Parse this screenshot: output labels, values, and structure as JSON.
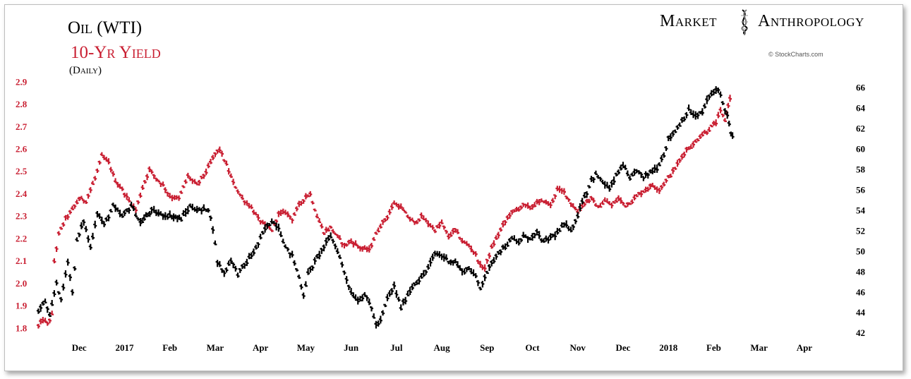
{
  "brand": {
    "left": "Market",
    "right": "Anthropology",
    "credit": "© StockCharts.com"
  },
  "chart_data": {
    "type": "line",
    "title": "Oil (WTI)",
    "subtitle": "10-Yr Yield",
    "period": "(Daily)",
    "grid": false,
    "x_labels": [
      "Dec",
      "2017",
      "Feb",
      "Mar",
      "Apr",
      "May",
      "Jun",
      "Jul",
      "Aug",
      "Sep",
      "Oct",
      "Nov",
      "Dec",
      "2018",
      "Feb",
      "Mar",
      "Apr"
    ],
    "x_label_times": [
      1.0,
      2.0,
      3.0,
      4.0,
      5.0,
      6.0,
      7.0,
      8.0,
      9.0,
      10.0,
      11.0,
      12.0,
      13.0,
      14.0,
      15.0,
      16.0,
      17.0
    ],
    "xlim": [
      0.0,
      17.5
    ],
    "left_axis": {
      "label": "",
      "ticks": [
        1.8,
        1.9,
        2.0,
        2.1,
        2.2,
        2.3,
        2.4,
        2.5,
        2.6,
        2.7,
        2.8,
        2.9
      ],
      "ylim": [
        1.76,
        2.92
      ],
      "color": "#c91f32"
    },
    "right_axis": {
      "label": "",
      "ticks": [
        42,
        44,
        46,
        48,
        50,
        52,
        54,
        56,
        58,
        60,
        62,
        64,
        66
      ],
      "ylim": [
        41.6,
        67.0
      ],
      "color": "#000000"
    },
    "series": [
      {
        "name": "Oil (WTI)",
        "axis": "right",
        "color": "#000000",
        "points": [
          [
            0.1,
            44.2
          ],
          [
            0.25,
            45.1
          ],
          [
            0.35,
            43.6
          ],
          [
            0.5,
            47.0
          ],
          [
            0.6,
            45.2
          ],
          [
            0.75,
            49.1
          ],
          [
            0.85,
            46.0
          ],
          [
            0.95,
            51.0
          ],
          [
            1.1,
            53.0
          ],
          [
            1.25,
            50.4
          ],
          [
            1.4,
            53.8
          ],
          [
            1.55,
            52.6
          ],
          [
            1.75,
            54.4
          ],
          [
            1.95,
            53.4
          ],
          [
            2.15,
            54.5
          ],
          [
            2.35,
            52.8
          ],
          [
            2.6,
            54.0
          ],
          [
            2.8,
            53.6
          ],
          [
            3.0,
            53.5
          ],
          [
            3.25,
            53.2
          ],
          [
            3.45,
            54.4
          ],
          [
            3.65,
            54.0
          ],
          [
            3.85,
            54.2
          ],
          [
            3.95,
            52.3
          ],
          [
            4.05,
            49.0
          ],
          [
            4.2,
            47.9
          ],
          [
            4.35,
            49.2
          ],
          [
            4.5,
            47.8
          ],
          [
            4.7,
            49.0
          ],
          [
            4.9,
            50.3
          ],
          [
            5.1,
            52.2
          ],
          [
            5.25,
            53.0
          ],
          [
            5.4,
            52.4
          ],
          [
            5.55,
            50.4
          ],
          [
            5.7,
            49.6
          ],
          [
            5.85,
            47.5
          ],
          [
            5.95,
            45.8
          ],
          [
            6.05,
            47.8
          ],
          [
            6.2,
            49.0
          ],
          [
            6.4,
            50.5
          ],
          [
            6.55,
            51.5
          ],
          [
            6.7,
            50.1
          ],
          [
            6.85,
            48.0
          ],
          [
            7.0,
            46.0
          ],
          [
            7.15,
            45.2
          ],
          [
            7.3,
            45.8
          ],
          [
            7.45,
            44.5
          ],
          [
            7.55,
            42.8
          ],
          [
            7.65,
            43.2
          ],
          [
            7.8,
            45.4
          ],
          [
            7.95,
            46.6
          ],
          [
            8.1,
            44.5
          ],
          [
            8.25,
            45.8
          ],
          [
            8.4,
            46.9
          ],
          [
            8.55,
            47.4
          ],
          [
            8.7,
            48.4
          ],
          [
            8.85,
            49.8
          ],
          [
            9.0,
            49.6
          ],
          [
            9.15,
            49.1
          ],
          [
            9.3,
            49.0
          ],
          [
            9.45,
            48.0
          ],
          [
            9.6,
            48.4
          ],
          [
            9.75,
            47.5
          ],
          [
            9.85,
            46.4
          ],
          [
            9.95,
            47.6
          ],
          [
            10.1,
            48.8
          ],
          [
            10.25,
            50.0
          ],
          [
            10.4,
            50.5
          ],
          [
            10.55,
            51.2
          ],
          [
            10.7,
            50.9
          ],
          [
            10.85,
            51.6
          ],
          [
            10.95,
            51.2
          ],
          [
            11.1,
            51.8
          ],
          [
            11.25,
            50.9
          ],
          [
            11.4,
            51.4
          ],
          [
            11.55,
            51.8
          ],
          [
            11.7,
            52.6
          ],
          [
            11.85,
            52.2
          ],
          [
            11.95,
            52.9
          ],
          [
            12.1,
            55.0
          ],
          [
            12.2,
            55.8
          ],
          [
            12.3,
            57.0
          ],
          [
            12.4,
            57.5
          ],
          [
            12.55,
            56.8
          ],
          [
            12.7,
            56.1
          ],
          [
            12.85,
            57.4
          ],
          [
            13.0,
            58.5
          ],
          [
            13.15,
            57.0
          ],
          [
            13.3,
            58.0
          ],
          [
            13.45,
            57.2
          ],
          [
            13.6,
            57.8
          ],
          [
            13.75,
            58.2
          ],
          [
            13.9,
            59.5
          ],
          [
            14.0,
            61.0
          ],
          [
            14.15,
            61.8
          ],
          [
            14.3,
            62.8
          ],
          [
            14.45,
            63.8
          ],
          [
            14.6,
            63.2
          ],
          [
            14.75,
            63.6
          ],
          [
            14.85,
            64.8
          ],
          [
            15.0,
            65.6
          ],
          [
            15.1,
            66.0
          ],
          [
            15.2,
            64.5
          ],
          [
            15.3,
            63.3
          ],
          [
            15.38,
            61.5
          ],
          [
            15.45,
            60.8
          ]
        ]
      },
      {
        "name": "10-Yr Yield",
        "axis": "left",
        "color": "#c91f32",
        "points": [
          [
            0.1,
            1.81
          ],
          [
            0.2,
            1.84
          ],
          [
            0.3,
            1.82
          ],
          [
            0.4,
            1.86
          ],
          [
            0.45,
            2.1
          ],
          [
            0.55,
            2.22
          ],
          [
            0.7,
            2.29
          ],
          [
            0.85,
            2.33
          ],
          [
            1.0,
            2.38
          ],
          [
            1.15,
            2.37
          ],
          [
            1.35,
            2.47
          ],
          [
            1.5,
            2.57
          ],
          [
            1.65,
            2.54
          ],
          [
            1.8,
            2.46
          ],
          [
            1.95,
            2.42
          ],
          [
            2.1,
            2.37
          ],
          [
            2.25,
            2.33
          ],
          [
            2.4,
            2.43
          ],
          [
            2.55,
            2.51
          ],
          [
            2.7,
            2.47
          ],
          [
            2.85,
            2.44
          ],
          [
            3.0,
            2.39
          ],
          [
            3.2,
            2.38
          ],
          [
            3.4,
            2.48
          ],
          [
            3.6,
            2.44
          ],
          [
            3.8,
            2.5
          ],
          [
            4.0,
            2.58
          ],
          [
            4.1,
            2.6
          ],
          [
            4.25,
            2.53
          ],
          [
            4.4,
            2.45
          ],
          [
            4.6,
            2.38
          ],
          [
            4.8,
            2.34
          ],
          [
            4.95,
            2.29
          ],
          [
            5.1,
            2.26
          ],
          [
            5.25,
            2.24
          ],
          [
            5.4,
            2.31
          ],
          [
            5.55,
            2.32
          ],
          [
            5.7,
            2.29
          ],
          [
            5.85,
            2.35
          ],
          [
            6.0,
            2.39
          ],
          [
            6.1,
            2.4
          ],
          [
            6.25,
            2.3
          ],
          [
            6.4,
            2.23
          ],
          [
            6.55,
            2.25
          ],
          [
            6.7,
            2.21
          ],
          [
            6.85,
            2.17
          ],
          [
            7.0,
            2.19
          ],
          [
            7.2,
            2.16
          ],
          [
            7.4,
            2.15
          ],
          [
            7.5,
            2.2
          ],
          [
            7.65,
            2.26
          ],
          [
            7.8,
            2.3
          ],
          [
            7.95,
            2.36
          ],
          [
            8.1,
            2.34
          ],
          [
            8.25,
            2.3
          ],
          [
            8.4,
            2.27
          ],
          [
            8.55,
            2.3
          ],
          [
            8.7,
            2.27
          ],
          [
            8.85,
            2.24
          ],
          [
            9.0,
            2.27
          ],
          [
            9.15,
            2.21
          ],
          [
            9.3,
            2.24
          ],
          [
            9.45,
            2.19
          ],
          [
            9.6,
            2.17
          ],
          [
            9.75,
            2.13
          ],
          [
            9.85,
            2.08
          ],
          [
            9.95,
            2.07
          ],
          [
            10.1,
            2.16
          ],
          [
            10.2,
            2.2
          ],
          [
            10.35,
            2.26
          ],
          [
            10.5,
            2.31
          ],
          [
            10.65,
            2.33
          ],
          [
            10.8,
            2.35
          ],
          [
            10.95,
            2.34
          ],
          [
            11.1,
            2.36
          ],
          [
            11.25,
            2.37
          ],
          [
            11.4,
            2.35
          ],
          [
            11.55,
            2.42
          ],
          [
            11.7,
            2.41
          ],
          [
            11.85,
            2.36
          ],
          [
            12.0,
            2.32
          ],
          [
            12.15,
            2.36
          ],
          [
            12.3,
            2.38
          ],
          [
            12.45,
            2.34
          ],
          [
            12.6,
            2.37
          ],
          [
            12.75,
            2.35
          ],
          [
            12.9,
            2.38
          ],
          [
            13.05,
            2.35
          ],
          [
            13.2,
            2.37
          ],
          [
            13.35,
            2.4
          ],
          [
            13.5,
            2.42
          ],
          [
            13.65,
            2.44
          ],
          [
            13.8,
            2.42
          ],
          [
            13.95,
            2.46
          ],
          [
            14.1,
            2.5
          ],
          [
            14.25,
            2.55
          ],
          [
            14.4,
            2.6
          ],
          [
            14.55,
            2.62
          ],
          [
            14.7,
            2.66
          ],
          [
            14.85,
            2.68
          ],
          [
            14.95,
            2.7
          ],
          [
            15.05,
            2.72
          ],
          [
            15.15,
            2.77
          ],
          [
            15.25,
            2.73
          ],
          [
            15.32,
            2.8
          ],
          [
            15.4,
            2.85
          ]
        ]
      }
    ]
  }
}
